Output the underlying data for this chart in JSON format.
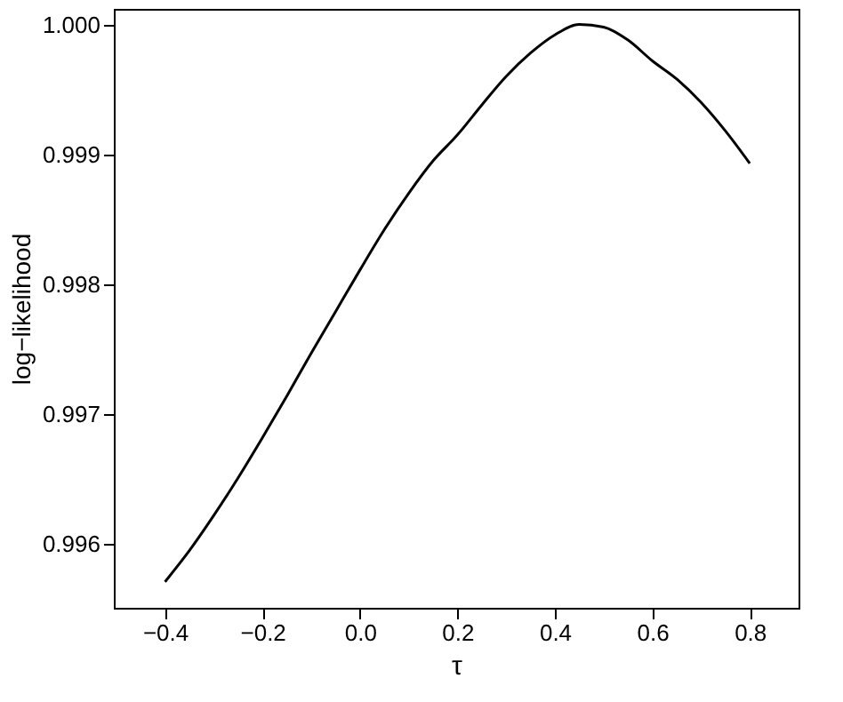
{
  "chart_data": {
    "type": "line",
    "xlabel": "τ",
    "ylabel": "log−likelihood",
    "x": [
      -0.4,
      -0.35,
      -0.3,
      -0.25,
      -0.2,
      -0.15,
      -0.1,
      -0.05,
      0.0,
      0.05,
      0.1,
      0.15,
      0.2,
      0.25,
      0.3,
      0.35,
      0.4,
      0.45,
      0.5,
      0.55,
      0.6,
      0.65,
      0.7,
      0.75,
      0.8
    ],
    "series": [
      {
        "color": "#000000",
        "values": [
          0.99571,
          0.99595,
          0.99622,
          0.99651,
          0.99682,
          0.99714,
          0.99747,
          0.99779,
          0.99811,
          0.99842,
          0.9987,
          0.99895,
          0.99915,
          0.99938,
          0.9996,
          0.99978,
          0.99992,
          1.0,
          0.99998,
          0.99988,
          0.99972,
          0.99958,
          0.9994,
          0.99918,
          0.99893
        ]
      }
    ],
    "xlim": [
      -0.505,
      0.9
    ],
    "ylim": [
      0.99551,
      1.00012
    ],
    "xticks": [
      {
        "value": -0.4,
        "label": "−0.4"
      },
      {
        "value": -0.2,
        "label": "−0.2"
      },
      {
        "value": 0,
        "label": "0.0"
      },
      {
        "value": 0.2,
        "label": "0.2"
      },
      {
        "value": 0.4,
        "label": "0.4"
      },
      {
        "value": 0.6,
        "label": "0.6"
      },
      {
        "value": 0.8,
        "label": "0.8"
      }
    ],
    "yticks": [
      {
        "value": 0.996,
        "label": "0.996"
      },
      {
        "value": 0.997,
        "label": "0.997"
      },
      {
        "value": 0.998,
        "label": "0.998"
      },
      {
        "value": 0.999,
        "label": "0.999"
      },
      {
        "value": 1.0,
        "label": "1.000"
      }
    ],
    "grid": false,
    "marker": "none",
    "line_style": "solid"
  }
}
